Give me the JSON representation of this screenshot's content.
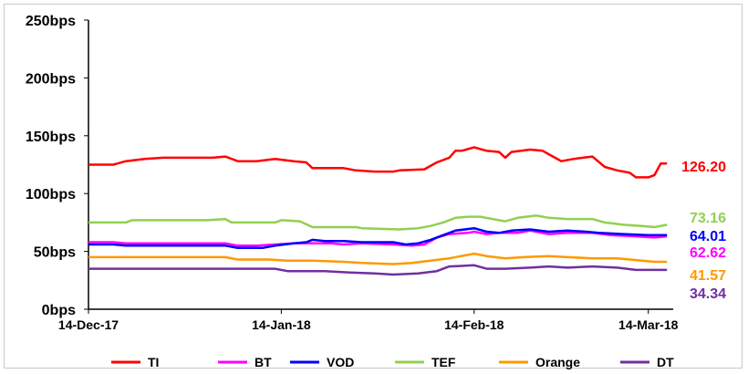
{
  "chart_data": {
    "type": "line",
    "title": "",
    "xlabel": "",
    "ylabel": "",
    "ylim": [
      0,
      250
    ],
    "y_ticks": [
      0,
      50,
      100,
      150,
      200,
      250
    ],
    "y_tick_labels": [
      "0bps",
      "50bps",
      "100bps",
      "150bps",
      "200bps",
      "250bps"
    ],
    "x_tick_labels": [
      "14-Dec-17",
      "14-Jan-18",
      "14-Feb-18",
      "14-Mar-18"
    ],
    "x_tick_values": [
      "2017-12-14",
      "2018-01-14",
      "2018-02-14",
      "2018-03-14"
    ],
    "xlim": [
      "2017-12-14",
      "2018-03-18"
    ],
    "grid": false,
    "legend_position": "bottom",
    "series": [
      {
        "name": "TI",
        "color": "#ff0000",
        "last_value_label": "126.20",
        "points": [
          [
            "2017-12-14",
            125
          ],
          [
            "2017-12-18",
            125
          ],
          [
            "2017-12-20",
            128
          ],
          [
            "2017-12-23",
            130
          ],
          [
            "2017-12-26",
            131
          ],
          [
            "2017-12-30",
            131
          ],
          [
            "2018-01-03",
            131
          ],
          [
            "2018-01-05",
            132
          ],
          [
            "2018-01-07",
            128
          ],
          [
            "2018-01-10",
            128
          ],
          [
            "2018-01-13",
            130
          ],
          [
            "2018-01-16",
            128
          ],
          [
            "2018-01-18",
            127
          ],
          [
            "2018-01-19",
            122
          ],
          [
            "2018-01-24",
            122
          ],
          [
            "2018-01-26",
            120
          ],
          [
            "2018-01-29",
            119
          ],
          [
            "2018-02-01",
            119
          ],
          [
            "2018-02-02",
            120
          ],
          [
            "2018-02-06",
            121
          ],
          [
            "2018-02-08",
            127
          ],
          [
            "2018-02-10",
            131
          ],
          [
            "2018-02-11",
            137
          ],
          [
            "2018-02-12",
            137
          ],
          [
            "2018-02-14",
            140
          ],
          [
            "2018-02-16",
            137
          ],
          [
            "2018-02-18",
            136
          ],
          [
            "2018-02-19",
            131
          ],
          [
            "2018-02-20",
            136
          ],
          [
            "2018-02-23",
            138
          ],
          [
            "2018-02-25",
            137
          ],
          [
            "2018-02-27",
            131
          ],
          [
            "2018-02-28",
            128
          ],
          [
            "2018-03-02",
            130
          ],
          [
            "2018-03-05",
            132
          ],
          [
            "2018-03-07",
            123
          ],
          [
            "2018-03-09",
            120
          ],
          [
            "2018-03-11",
            118
          ],
          [
            "2018-03-12",
            114
          ],
          [
            "2018-03-14",
            114
          ],
          [
            "2018-03-15",
            116
          ],
          [
            "2018-03-16",
            126
          ],
          [
            "2018-03-17",
            126
          ]
        ]
      },
      {
        "name": "BT",
        "color": "#ff00ff",
        "last_value_label": "62.62",
        "points": [
          [
            "2017-12-14",
            58
          ],
          [
            "2017-12-18",
            58
          ],
          [
            "2017-12-20",
            57
          ],
          [
            "2018-01-05",
            57
          ],
          [
            "2018-01-07",
            55
          ],
          [
            "2018-01-10",
            55
          ],
          [
            "2018-01-13",
            56
          ],
          [
            "2018-01-16",
            57
          ],
          [
            "2018-01-19",
            57
          ],
          [
            "2018-01-22",
            57
          ],
          [
            "2018-01-24",
            56
          ],
          [
            "2018-01-27",
            57
          ],
          [
            "2018-02-01",
            56
          ],
          [
            "2018-02-04",
            55
          ],
          [
            "2018-02-06",
            56
          ],
          [
            "2018-02-08",
            62
          ],
          [
            "2018-02-10",
            65
          ],
          [
            "2018-02-13",
            66
          ],
          [
            "2018-02-14",
            67
          ],
          [
            "2018-02-16",
            65
          ],
          [
            "2018-02-18",
            66
          ],
          [
            "2018-02-21",
            66
          ],
          [
            "2018-02-23",
            68
          ],
          [
            "2018-02-26",
            65
          ],
          [
            "2018-03-01",
            66
          ],
          [
            "2018-03-05",
            66
          ],
          [
            "2018-03-08",
            64
          ],
          [
            "2018-03-12",
            63
          ],
          [
            "2018-03-15",
            62
          ],
          [
            "2018-03-17",
            63
          ]
        ]
      },
      {
        "name": "VOD",
        "color": "#0000ff",
        "last_value_label": "64.01",
        "points": [
          [
            "2017-12-14",
            56
          ],
          [
            "2017-12-18",
            56
          ],
          [
            "2017-12-20",
            55
          ],
          [
            "2018-01-05",
            55
          ],
          [
            "2018-01-07",
            53
          ],
          [
            "2018-01-11",
            53
          ],
          [
            "2018-01-13",
            55
          ],
          [
            "2018-01-16",
            57
          ],
          [
            "2018-01-18",
            58
          ],
          [
            "2018-01-19",
            60
          ],
          [
            "2018-01-21",
            59
          ],
          [
            "2018-01-24",
            59
          ],
          [
            "2018-01-27",
            58
          ],
          [
            "2018-02-01",
            58
          ],
          [
            "2018-02-03",
            56
          ],
          [
            "2018-02-05",
            57
          ],
          [
            "2018-02-07",
            60
          ],
          [
            "2018-02-09",
            64
          ],
          [
            "2018-02-11",
            68
          ],
          [
            "2018-02-14",
            70
          ],
          [
            "2018-02-16",
            67
          ],
          [
            "2018-02-18",
            66
          ],
          [
            "2018-02-20",
            68
          ],
          [
            "2018-02-23",
            69
          ],
          [
            "2018-02-26",
            67
          ],
          [
            "2018-03-01",
            68
          ],
          [
            "2018-03-04",
            67
          ],
          [
            "2018-03-06",
            66
          ],
          [
            "2018-03-10",
            65
          ],
          [
            "2018-03-14",
            64
          ],
          [
            "2018-03-17",
            64
          ]
        ]
      },
      {
        "name": "TEF",
        "color": "#92d050",
        "last_value_label": "73.16",
        "points": [
          [
            "2017-12-14",
            75
          ],
          [
            "2017-12-20",
            75
          ],
          [
            "2017-12-21",
            77
          ],
          [
            "2018-01-02",
            77
          ],
          [
            "2018-01-05",
            78
          ],
          [
            "2018-01-06",
            75
          ],
          [
            "2018-01-13",
            75
          ],
          [
            "2018-01-14",
            77
          ],
          [
            "2018-01-17",
            76
          ],
          [
            "2018-01-19",
            71
          ],
          [
            "2018-01-26",
            71
          ],
          [
            "2018-01-27",
            70
          ],
          [
            "2018-02-02",
            69
          ],
          [
            "2018-02-05",
            70
          ],
          [
            "2018-02-07",
            72
          ],
          [
            "2018-02-09",
            75
          ],
          [
            "2018-02-11",
            79
          ],
          [
            "2018-02-13",
            80
          ],
          [
            "2018-02-15",
            80
          ],
          [
            "2018-02-17",
            78
          ],
          [
            "2018-02-19",
            76
          ],
          [
            "2018-02-21",
            79
          ],
          [
            "2018-02-24",
            81
          ],
          [
            "2018-02-26",
            79
          ],
          [
            "2018-03-01",
            78
          ],
          [
            "2018-03-05",
            78
          ],
          [
            "2018-03-07",
            75
          ],
          [
            "2018-03-10",
            73
          ],
          [
            "2018-03-13",
            72
          ],
          [
            "2018-03-15",
            71
          ],
          [
            "2018-03-17",
            73
          ]
        ]
      },
      {
        "name": "Orange",
        "color": "#ff9900",
        "last_value_label": "41.57",
        "points": [
          [
            "2017-12-14",
            45
          ],
          [
            "2018-01-05",
            45
          ],
          [
            "2018-01-07",
            43
          ],
          [
            "2018-01-12",
            43
          ],
          [
            "2018-01-15",
            42
          ],
          [
            "2018-01-19",
            42
          ],
          [
            "2018-01-24",
            41
          ],
          [
            "2018-01-27",
            40
          ],
          [
            "2018-02-01",
            39
          ],
          [
            "2018-02-04",
            40
          ],
          [
            "2018-02-07",
            42
          ],
          [
            "2018-02-10",
            44
          ],
          [
            "2018-02-14",
            48
          ],
          [
            "2018-02-16",
            46
          ],
          [
            "2018-02-19",
            44
          ],
          [
            "2018-02-22",
            45
          ],
          [
            "2018-02-26",
            46
          ],
          [
            "2018-03-01",
            45
          ],
          [
            "2018-03-05",
            44
          ],
          [
            "2018-03-09",
            44
          ],
          [
            "2018-03-13",
            42
          ],
          [
            "2018-03-15",
            41
          ],
          [
            "2018-03-17",
            41
          ]
        ]
      },
      {
        "name": "DT",
        "color": "#7030a0",
        "last_value_label": "34.34",
        "points": [
          [
            "2017-12-14",
            35
          ],
          [
            "2018-01-13",
            35
          ],
          [
            "2018-01-15",
            33
          ],
          [
            "2018-01-21",
            33
          ],
          [
            "2018-01-24",
            32
          ],
          [
            "2018-01-29",
            31
          ],
          [
            "2018-02-01",
            30
          ],
          [
            "2018-02-05",
            31
          ],
          [
            "2018-02-08",
            33
          ],
          [
            "2018-02-10",
            37
          ],
          [
            "2018-02-14",
            38
          ],
          [
            "2018-02-16",
            35
          ],
          [
            "2018-02-19",
            35
          ],
          [
            "2018-02-23",
            36
          ],
          [
            "2018-02-26",
            37
          ],
          [
            "2018-03-01",
            36
          ],
          [
            "2018-03-05",
            37
          ],
          [
            "2018-03-09",
            36
          ],
          [
            "2018-03-12",
            34
          ],
          [
            "2018-03-17",
            34
          ]
        ]
      }
    ]
  }
}
